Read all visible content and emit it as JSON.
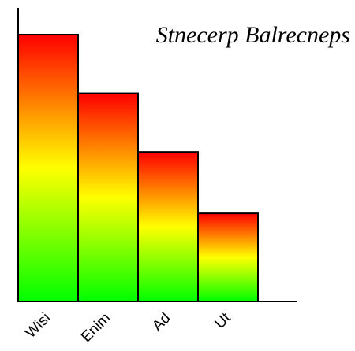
{
  "chart_data": {
    "type": "bar",
    "title": "Stnecerp Balrecneps",
    "categories": [
      "Wisi",
      "Enim",
      "Ad",
      "Ut"
    ],
    "values": [
      100,
      78,
      56,
      33
    ],
    "ylim": [
      0,
      110
    ],
    "grid": false,
    "legend": "none",
    "bar_gradient": {
      "top": "#ff0000",
      "middle": "#ffff00",
      "bottom": "#00ff00"
    },
    "bar_outline": "#000000"
  }
}
